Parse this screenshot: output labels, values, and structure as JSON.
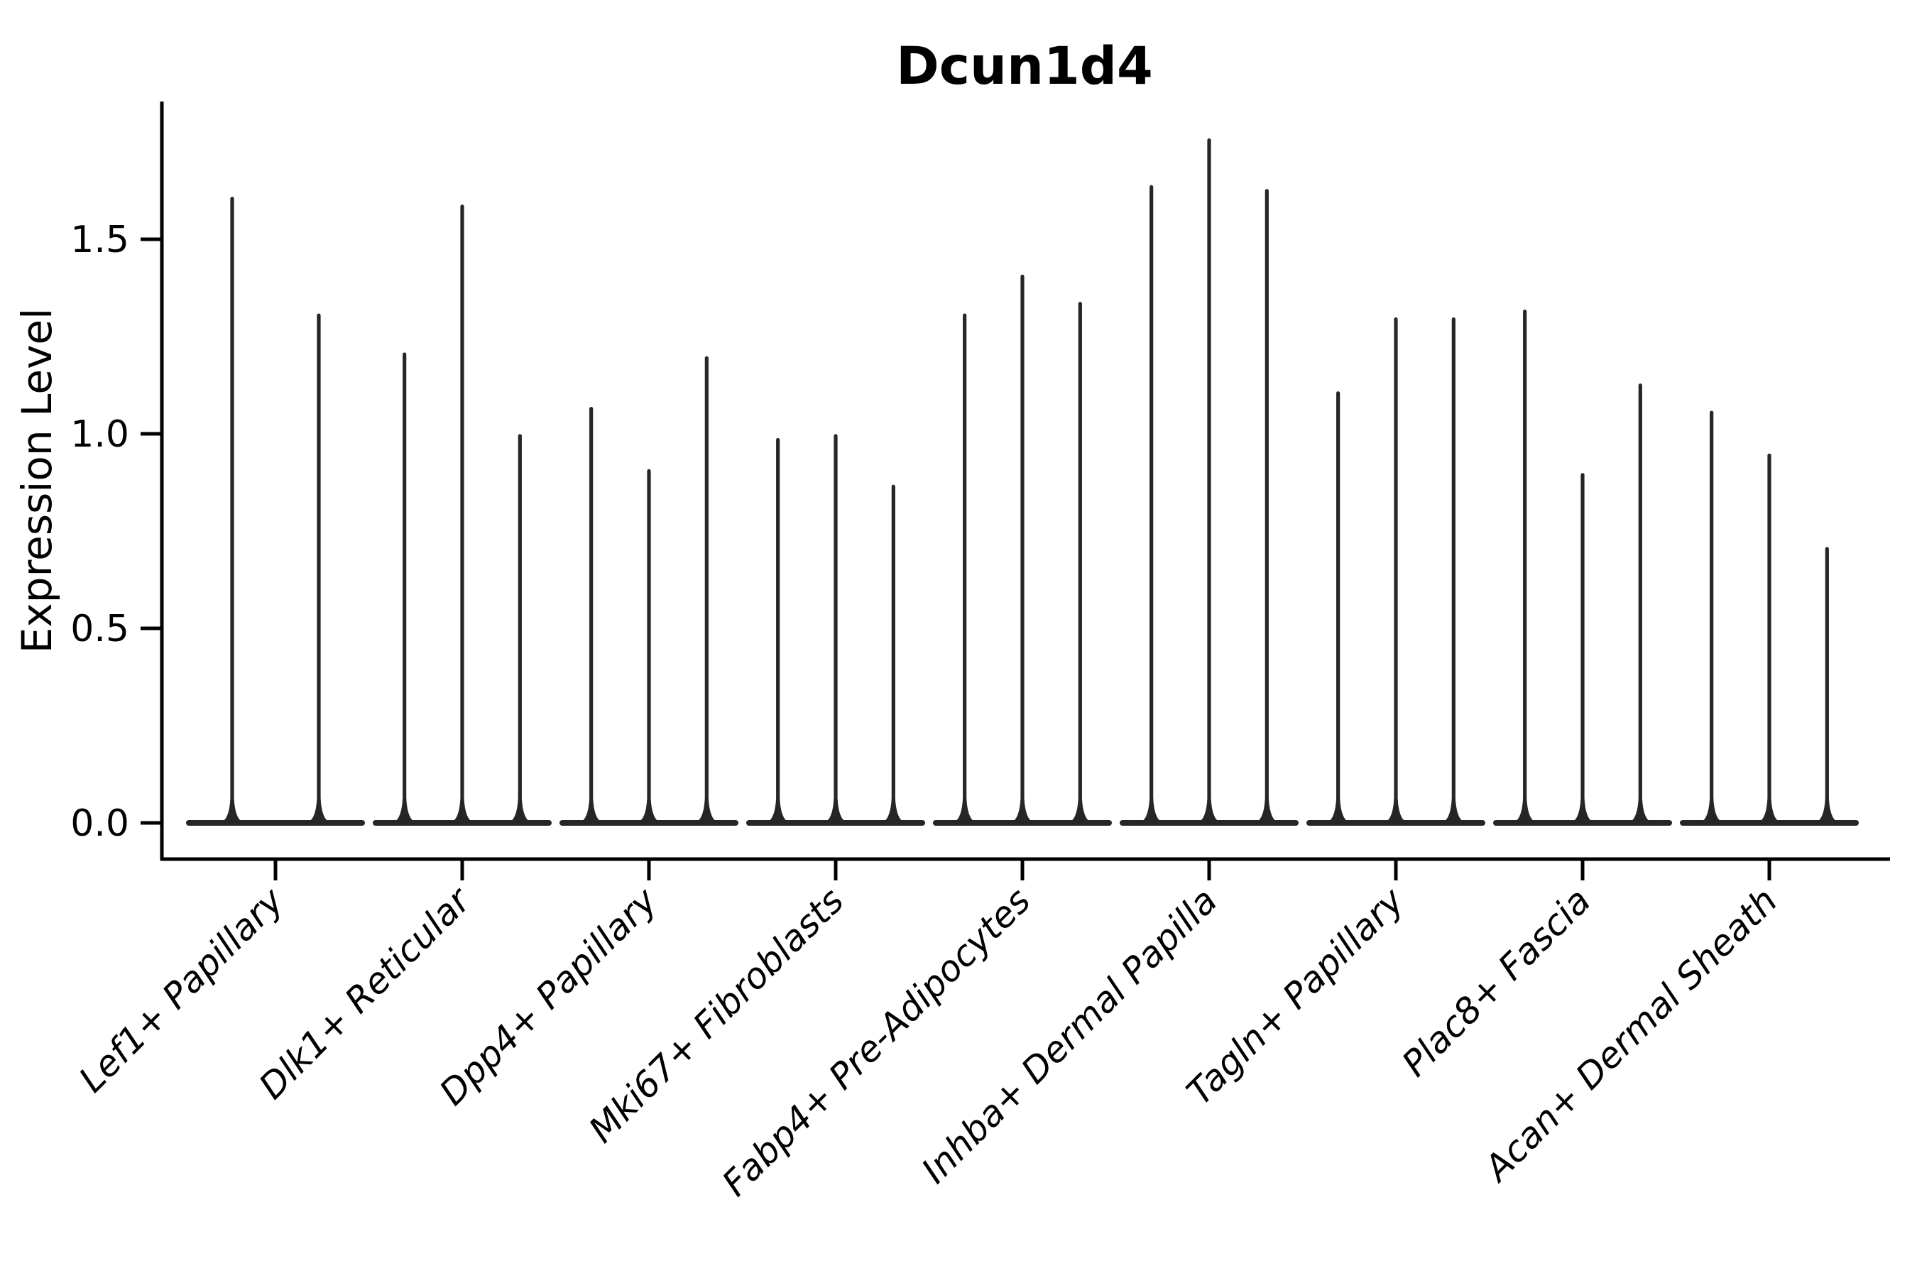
{
  "chart_data": {
    "type": "violin",
    "title": "Dcun1d4",
    "ylabel": "Expression Level",
    "xlabel": "",
    "yticks": [
      0.0,
      0.5,
      1.0,
      1.5
    ],
    "ytick_labels": [
      "0.0",
      "0.5",
      "1.0",
      "1.5"
    ],
    "ylim": [
      -0.09,
      1.86
    ],
    "grid": false,
    "legend_position": "none",
    "categories": [
      "Lef1+ Papillary",
      "Dlk1+ Reticular",
      "Dpp4+ Papillary",
      "Mki67+ Fibroblasts",
      "Fabp4+ Pre-Adipocytes",
      "Inhba+ Dermal Papilla",
      "Tagln+ Papillary",
      "Plac8+ Fascia",
      "Acan+ Dermal Sheath"
    ],
    "violins": [
      {
        "category": "Lef1+ Papillary",
        "spike_maxima": [
          1.61,
          1.31
        ]
      },
      {
        "category": "Dlk1+ Reticular",
        "spike_maxima": [
          1.21,
          1.59,
          1.0
        ]
      },
      {
        "category": "Dpp4+ Papillary",
        "spike_maxima": [
          1.07,
          0.91,
          1.2
        ]
      },
      {
        "category": "Mki67+ Fibroblasts",
        "spike_maxima": [
          0.99,
          1.0,
          0.87
        ]
      },
      {
        "category": "Fabp4+ Pre-Adipocytes",
        "spike_maxima": [
          1.31,
          1.41,
          1.34
        ]
      },
      {
        "category": "Inhba+ Dermal Papilla",
        "spike_maxima": [
          1.64,
          1.76,
          1.63
        ]
      },
      {
        "category": "Tagln+ Papillary",
        "spike_maxima": [
          1.11,
          1.3,
          1.3
        ]
      },
      {
        "category": "Plac8+ Fascia",
        "spike_maxima": [
          1.32,
          0.9,
          1.13
        ]
      },
      {
        "category": "Acan+ Dermal Sheath",
        "spike_maxima": [
          1.06,
          0.95,
          0.71
        ]
      }
    ],
    "baseline_value": 0.0,
    "colors": {
      "violin_line": "#262626",
      "axis": "#000000",
      "text": "#000000",
      "background": "#ffffff"
    }
  }
}
